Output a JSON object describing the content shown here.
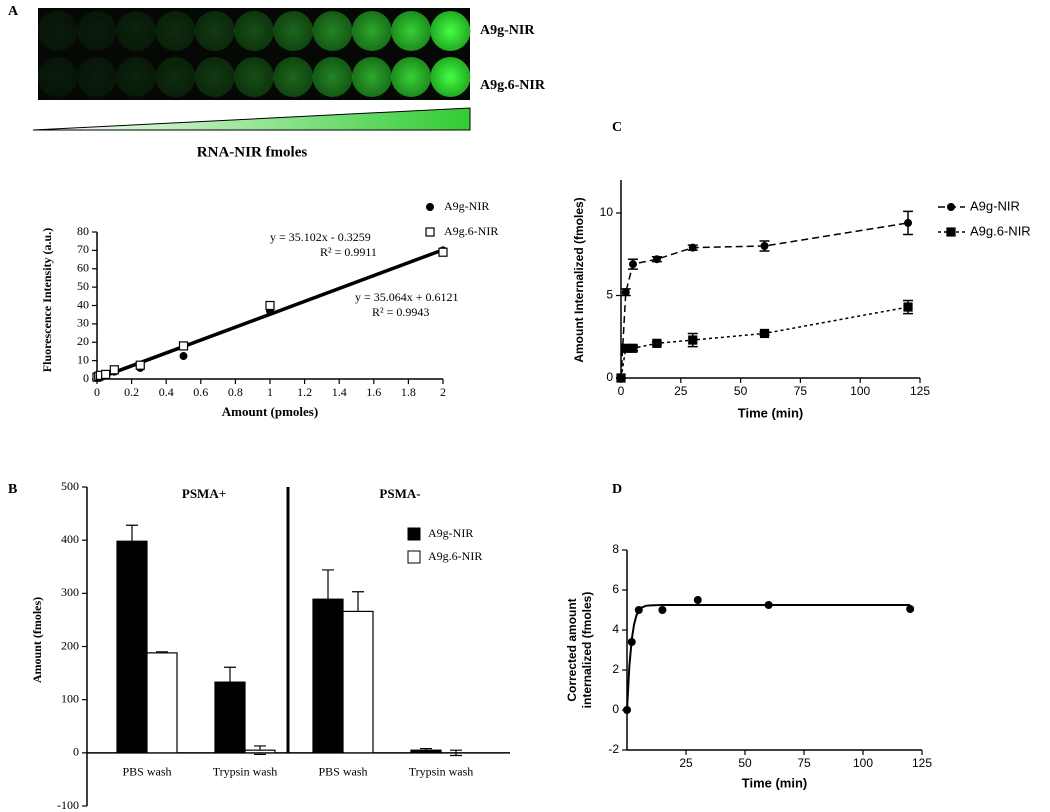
{
  "figure": {
    "panel_labels": [
      "A",
      "B",
      "C",
      "D"
    ],
    "image_rows": [
      "A9g-NIR",
      "A9g.6-NIR"
    ],
    "gradient_label": "RNA-NIR fmoles"
  },
  "chart_data": [
    {
      "type": "scatter",
      "x_label": "Amount (pmoles)",
      "y_label": "Fluorescence Intensity (a.u.)",
      "xlim": [
        0,
        2
      ],
      "xticks": [
        0,
        0.2,
        0.4,
        0.6,
        0.8,
        1,
        1.2,
        1.4,
        1.6,
        1.8,
        2
      ],
      "ylim": [
        0,
        80
      ],
      "yticks": [
        0,
        10,
        20,
        30,
        40,
        50,
        60,
        70,
        80
      ],
      "series": [
        {
          "name": "A9g-NIR",
          "marker": "circle",
          "color": "#000000",
          "x": [
            0,
            0.01,
            0.02,
            0.05,
            0.1,
            0.25,
            0.5,
            1,
            2
          ],
          "values": [
            0.5,
            1,
            1.5,
            2,
            4,
            6,
            12.5,
            37,
            70
          ]
        },
        {
          "name": "A9g.6-NIR",
          "marker": "open-square",
          "color": "#000000",
          "x": [
            0,
            0.01,
            0.02,
            0.05,
            0.1,
            0.25,
            0.5,
            1,
            2
          ],
          "values": [
            1,
            1.5,
            2,
            2.5,
            5,
            7.5,
            18,
            40,
            69
          ]
        }
      ],
      "trendlines": [
        {
          "equation": "y = 35.102x - 0.3259",
          "slope": 35.102,
          "intercept": -0.3259,
          "r2_label": "R² = 0.9911",
          "r2": 0.9911
        },
        {
          "equation": "y = 35.064x + 0.6121",
          "slope": 35.064,
          "intercept": 0.6121,
          "r2_label": "R² = 0.9943",
          "r2": 0.9943
        }
      ]
    },
    {
      "type": "bar",
      "y_label": "Amount (fmoles)",
      "group_labels": [
        "PSMA+",
        "PSMA-"
      ],
      "categories": [
        "PBS wash",
        "Trypsin wash",
        "PBS wash",
        "Trypsin wash"
      ],
      "ylim": [
        -100,
        500
      ],
      "yticks": [
        -100,
        0,
        100,
        200,
        300,
        400,
        500
      ],
      "series": [
        {
          "name": "A9g-NIR",
          "color": "#000000",
          "values": [
            398,
            133,
            289,
            5
          ],
          "errors": [
            30,
            28,
            55,
            3
          ]
        },
        {
          "name": "A9g.6-NIR",
          "color": "#ffffff",
          "values": [
            188,
            5,
            266,
            0
          ],
          "errors": [
            2,
            8,
            37,
            5
          ]
        }
      ]
    },
    {
      "type": "line",
      "x_label": "Time (min)",
      "y_label": "Amount Internalized (fmoles)",
      "xlim": [
        0,
        125
      ],
      "xticks": [
        0,
        25,
        50,
        75,
        100,
        125
      ],
      "ylim": [
        0,
        12
      ],
      "yticks": [
        0,
        5,
        10
      ],
      "x": [
        0,
        2,
        5,
        15,
        30,
        60,
        120
      ],
      "series": [
        {
          "name": "A9g-NIR",
          "marker": "circle",
          "dash": "7,4",
          "color": "#000000",
          "values": [
            0,
            5.2,
            6.9,
            7.2,
            7.9,
            8.0,
            9.4
          ],
          "errors": [
            0,
            0.2,
            0.3,
            0.15,
            0.15,
            0.3,
            0.7
          ]
        },
        {
          "name": "A9g.6-NIR",
          "marker": "square",
          "dash": "3,3",
          "color": "#000000",
          "values": [
            0,
            1.8,
            1.8,
            2.1,
            2.3,
            2.7,
            4.3
          ],
          "errors": [
            0,
            0.1,
            0.15,
            0.1,
            0.4,
            0.1,
            0.4
          ]
        }
      ]
    },
    {
      "type": "scatter",
      "x_label": "Time (min)",
      "y_label": [
        "Corrected amount",
        "internalized (fmoles)"
      ],
      "xlim": [
        0,
        125
      ],
      "xticks": [
        25,
        50,
        75,
        100,
        125
      ],
      "ylim": [
        -2,
        8
      ],
      "yticks": [
        -2,
        0,
        2,
        4,
        6,
        8
      ],
      "x": [
        0,
        2,
        5,
        15,
        30,
        60,
        120
      ],
      "values": [
        0,
        3.4,
        5.0,
        5.0,
        5.5,
        5.25,
        5.05
      ],
      "color": "#000000",
      "fit_curve": {
        "x": [
          0,
          1,
          2,
          3,
          4,
          5,
          6,
          8,
          10,
          15,
          30,
          60,
          120
        ],
        "values": [
          0,
          2.2,
          3.52,
          4.28,
          4.73,
          4.98,
          5.11,
          5.21,
          5.23,
          5.25,
          5.25,
          5.25,
          5.25
        ]
      }
    }
  ]
}
